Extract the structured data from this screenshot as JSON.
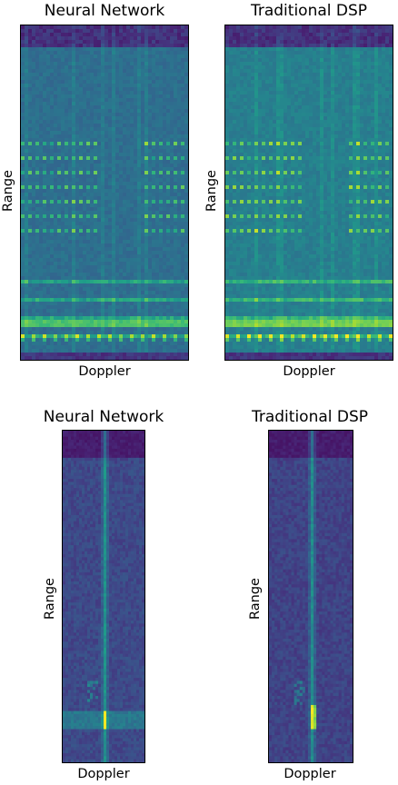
{
  "chart_data": [
    {
      "type": "heatmap",
      "title": "Neural Network",
      "xlabel": "Doppler",
      "ylabel": "Range",
      "colormap": "viridis",
      "grid": false,
      "style": "wide-multi"
    },
    {
      "type": "heatmap",
      "title": "Traditional DSP",
      "xlabel": "Doppler",
      "ylabel": "Range",
      "colormap": "viridis",
      "grid": false,
      "style": "wide-multi"
    },
    {
      "type": "heatmap",
      "title": "Neural Network",
      "xlabel": "Doppler",
      "ylabel": "Range",
      "colormap": "viridis",
      "grid": false,
      "style": "narrow-single"
    },
    {
      "type": "heatmap",
      "title": "Traditional DSP",
      "xlabel": "Doppler",
      "ylabel": "Range",
      "colormap": "viridis",
      "grid": false,
      "style": "narrow-single"
    }
  ]
}
